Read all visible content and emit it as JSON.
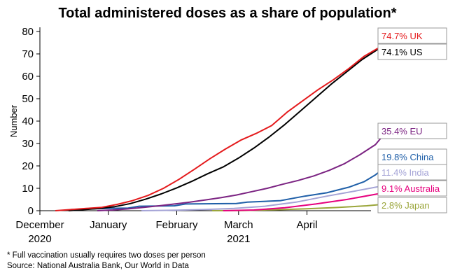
{
  "chart_data": {
    "type": "line",
    "title": "Total administered doses as a share of population*",
    "xlabel": "",
    "ylabel": "Number",
    "ylim": [
      0,
      80
    ],
    "yticks": [
      0,
      10,
      20,
      30,
      40,
      50,
      60,
      70,
      80
    ],
    "xlim": [
      "2020-12-01",
      "2021-04-30"
    ],
    "x_tick_labels": [
      {
        "date": "2020-12-01",
        "label": "December"
      },
      {
        "date": "2021-01-01",
        "label": "January"
      },
      {
        "date": "2021-02-01",
        "label": "February"
      },
      {
        "date": "2021-03-01",
        "label": "March"
      },
      {
        "date": "2021-04-01",
        "label": "April"
      }
    ],
    "x_year_labels": [
      {
        "date": "2020-12-01",
        "label": "2020"
      },
      {
        "date": "2021-03-01",
        "label": "2021"
      }
    ],
    "grid": false,
    "series": [
      {
        "name": "UK",
        "label": "74.7% UK",
        "color": "#e41a1c",
        "points": [
          [
            "2020-12-08",
            0
          ],
          [
            "2020-12-15",
            0.5
          ],
          [
            "2020-12-22",
            1
          ],
          [
            "2020-12-29",
            1.5
          ],
          [
            "2021-01-05",
            2.8
          ],
          [
            "2021-01-12",
            4.5
          ],
          [
            "2021-01-19",
            6.8
          ],
          [
            "2021-01-26",
            10
          ],
          [
            "2021-02-02",
            14
          ],
          [
            "2021-02-09",
            18.5
          ],
          [
            "2021-02-16",
            23.2
          ],
          [
            "2021-02-23",
            27.5
          ],
          [
            "2021-03-02",
            31.5
          ],
          [
            "2021-03-09",
            34.5
          ],
          [
            "2021-03-16",
            38
          ],
          [
            "2021-03-23",
            44
          ],
          [
            "2021-03-30",
            49
          ],
          [
            "2021-04-06",
            54
          ],
          [
            "2021-04-13",
            58.5
          ],
          [
            "2021-04-20",
            63.5
          ],
          [
            "2021-04-27",
            69
          ],
          [
            "2021-05-04",
            73
          ],
          [
            "2021-05-07",
            74.7
          ]
        ]
      },
      {
        "name": "US",
        "label": "74.1% US",
        "color": "#000000",
        "points": [
          [
            "2020-12-14",
            0
          ],
          [
            "2020-12-21",
            0.5
          ],
          [
            "2020-12-28",
            1
          ],
          [
            "2021-01-04",
            1.8
          ],
          [
            "2021-01-11",
            3.2
          ],
          [
            "2021-01-18",
            5.2
          ],
          [
            "2021-01-25",
            7.5
          ],
          [
            "2021-02-01",
            10.2
          ],
          [
            "2021-02-08",
            13.2
          ],
          [
            "2021-02-15",
            16.5
          ],
          [
            "2021-02-22",
            19.5
          ],
          [
            "2021-03-01",
            23.5
          ],
          [
            "2021-03-08",
            28
          ],
          [
            "2021-03-15",
            33
          ],
          [
            "2021-03-22",
            38.5
          ],
          [
            "2021-03-29",
            44.5
          ],
          [
            "2021-04-05",
            50.5
          ],
          [
            "2021-04-12",
            56.5
          ],
          [
            "2021-04-19",
            62
          ],
          [
            "2021-04-26",
            67.5
          ],
          [
            "2021-05-03",
            72
          ],
          [
            "2021-05-07",
            74.1
          ]
        ]
      },
      {
        "name": "EU",
        "label": "35.4% EU",
        "color": "#7b2382",
        "points": [
          [
            "2020-12-27",
            0
          ],
          [
            "2021-01-03",
            0.3
          ],
          [
            "2021-01-10",
            0.8
          ],
          [
            "2021-01-17",
            1.5
          ],
          [
            "2021-01-24",
            2.2
          ],
          [
            "2021-01-31",
            3
          ],
          [
            "2021-02-07",
            3.8
          ],
          [
            "2021-02-14",
            4.8
          ],
          [
            "2021-02-21",
            5.8
          ],
          [
            "2021-02-28",
            7
          ],
          [
            "2021-03-07",
            8.5
          ],
          [
            "2021-03-14",
            10
          ],
          [
            "2021-03-21",
            11.8
          ],
          [
            "2021-03-28",
            13.5
          ],
          [
            "2021-04-04",
            15.5
          ],
          [
            "2021-04-11",
            18
          ],
          [
            "2021-04-18",
            21
          ],
          [
            "2021-04-25",
            25
          ],
          [
            "2021-05-02",
            29.5
          ],
          [
            "2021-05-07",
            35.4
          ]
        ]
      },
      {
        "name": "China",
        "label": "19.8% China",
        "color": "#1f5fa8",
        "points": [
          [
            "2020-12-15",
            0.5
          ],
          [
            "2020-12-31",
            1
          ],
          [
            "2021-01-10",
            1.2
          ],
          [
            "2021-01-15",
            2
          ],
          [
            "2021-01-31",
            2.2
          ],
          [
            "2021-02-05",
            3
          ],
          [
            "2021-02-28",
            3.2
          ],
          [
            "2021-03-05",
            3.8
          ],
          [
            "2021-03-20",
            4.5
          ],
          [
            "2021-03-31",
            6.5
          ],
          [
            "2021-04-10",
            8
          ],
          [
            "2021-04-20",
            10.5
          ],
          [
            "2021-04-27",
            13
          ],
          [
            "2021-05-02",
            16
          ],
          [
            "2021-05-07",
            19.8
          ]
        ]
      },
      {
        "name": "India",
        "label": "11.4% India",
        "color": "#a4a3d6",
        "points": [
          [
            "2021-01-16",
            0
          ],
          [
            "2021-01-30",
            0.2
          ],
          [
            "2021-02-13",
            0.5
          ],
          [
            "2021-02-27",
            1
          ],
          [
            "2021-03-13",
            2
          ],
          [
            "2021-03-27",
            3.8
          ],
          [
            "2021-04-10",
            6.5
          ],
          [
            "2021-04-24",
            9
          ],
          [
            "2021-05-07",
            11.4
          ]
        ]
      },
      {
        "name": "Australia",
        "label": "9.1% Australia",
        "color": "#e6007e",
        "points": [
          [
            "2021-02-22",
            0
          ],
          [
            "2021-03-08",
            0.3
          ],
          [
            "2021-03-22",
            1.3
          ],
          [
            "2021-04-05",
            3
          ],
          [
            "2021-04-19",
            5
          ],
          [
            "2021-05-03",
            7.5
          ],
          [
            "2021-05-07",
            9.1
          ]
        ]
      },
      {
        "name": "Japan",
        "label": "2.8% Japan",
        "color": "#9aa53a",
        "points": [
          [
            "2021-02-17",
            0
          ],
          [
            "2021-03-03",
            0.1
          ],
          [
            "2021-03-17",
            0.4
          ],
          [
            "2021-03-31",
            0.8
          ],
          [
            "2021-04-14",
            1.4
          ],
          [
            "2021-04-28",
            2.2
          ],
          [
            "2021-05-05",
            2.8
          ]
        ]
      }
    ]
  },
  "footnotes": {
    "note": "* Full vaccination usually requires two doses per person",
    "source": "Source: National Australia Bank, Our World in Data"
  }
}
